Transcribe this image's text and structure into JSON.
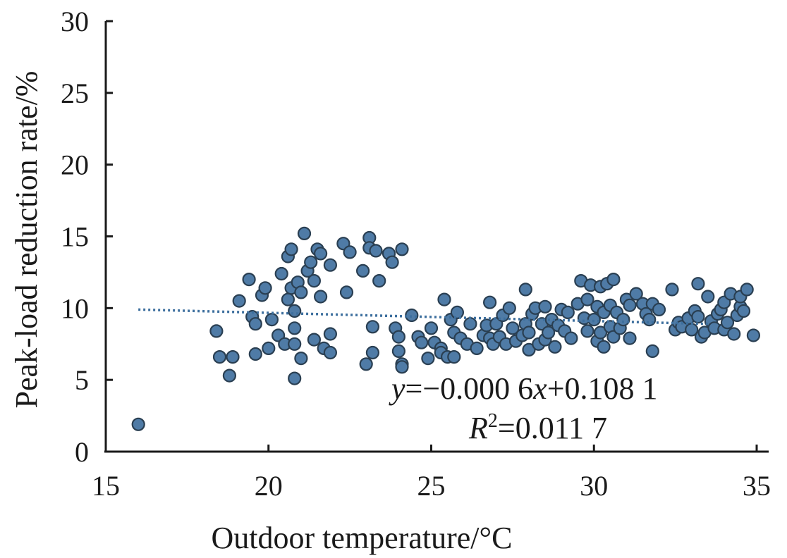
{
  "chart_data": {
    "type": "scatter",
    "xlabel": "Outdoor temperature/°C",
    "ylabel": "Peak-load reduction rate/%",
    "xlim": [
      15,
      35
    ],
    "ylim": [
      0,
      30
    ],
    "xticks": [
      "15",
      "20",
      "25",
      "30",
      "35"
    ],
    "yticks": [
      "0",
      "5",
      "10",
      "15",
      "20",
      "25",
      "30"
    ],
    "trendline": {
      "style": "dotted",
      "x": [
        16,
        33.5
      ],
      "y": [
        9.9,
        8.9
      ]
    },
    "annotation": {
      "equation": {
        "y": "y",
        "eq1": "=−0.000 6",
        "x": "x",
        "eq2": "+0.108 1"
      },
      "r2": {
        "r": "R",
        "sup": "2",
        "val": "=0.011 7"
      }
    },
    "grid": false,
    "points": [
      [
        16.0,
        1.9
      ],
      [
        18.4,
        8.4
      ],
      [
        18.5,
        6.6
      ],
      [
        18.8,
        5.3
      ],
      [
        18.9,
        6.6
      ],
      [
        19.1,
        10.5
      ],
      [
        19.4,
        12.0
      ],
      [
        19.5,
        9.4
      ],
      [
        19.6,
        8.9
      ],
      [
        19.6,
        6.8
      ],
      [
        19.8,
        10.9
      ],
      [
        19.9,
        11.4
      ],
      [
        20.0,
        7.2
      ],
      [
        20.1,
        9.2
      ],
      [
        20.3,
        8.1
      ],
      [
        20.4,
        12.4
      ],
      [
        20.5,
        7.5
      ],
      [
        20.6,
        10.6
      ],
      [
        20.6,
        13.6
      ],
      [
        20.7,
        14.1
      ],
      [
        20.7,
        11.4
      ],
      [
        20.8,
        9.8
      ],
      [
        20.8,
        8.6
      ],
      [
        20.8,
        7.5
      ],
      [
        20.8,
        5.1
      ],
      [
        20.9,
        11.8
      ],
      [
        21.0,
        11.1
      ],
      [
        21.0,
        6.5
      ],
      [
        21.1,
        15.2
      ],
      [
        21.2,
        12.6
      ],
      [
        21.3,
        13.2
      ],
      [
        21.4,
        11.9
      ],
      [
        21.4,
        7.8
      ],
      [
        21.5,
        14.1
      ],
      [
        21.6,
        13.8
      ],
      [
        21.6,
        10.8
      ],
      [
        21.7,
        7.2
      ],
      [
        21.9,
        13.0
      ],
      [
        21.9,
        8.2
      ],
      [
        21.9,
        6.9
      ],
      [
        22.3,
        14.5
      ],
      [
        22.4,
        11.1
      ],
      [
        22.5,
        13.9
      ],
      [
        22.9,
        12.6
      ],
      [
        23.0,
        6.1
      ],
      [
        23.1,
        14.9
      ],
      [
        23.1,
        14.2
      ],
      [
        23.2,
        8.7
      ],
      [
        23.2,
        6.9
      ],
      [
        23.3,
        14.0
      ],
      [
        23.4,
        11.9
      ],
      [
        23.7,
        13.8
      ],
      [
        23.8,
        13.2
      ],
      [
        23.9,
        8.6
      ],
      [
        24.0,
        8.0
      ],
      [
        24.0,
        7.0
      ],
      [
        24.1,
        6.1
      ],
      [
        24.1,
        5.9
      ],
      [
        24.1,
        14.1
      ],
      [
        24.4,
        9.5
      ],
      [
        24.6,
        8.0
      ],
      [
        24.7,
        7.6
      ],
      [
        24.9,
        6.5
      ],
      [
        25.0,
        8.6
      ],
      [
        25.1,
        7.6
      ],
      [
        25.3,
        7.2
      ],
      [
        25.3,
        6.9
      ],
      [
        25.4,
        10.6
      ],
      [
        25.5,
        6.6
      ],
      [
        25.6,
        9.2
      ],
      [
        25.7,
        8.3
      ],
      [
        25.7,
        6.6
      ],
      [
        25.8,
        9.7
      ],
      [
        25.9,
        7.9
      ],
      [
        26.1,
        7.5
      ],
      [
        26.2,
        8.9
      ],
      [
        26.4,
        7.2
      ],
      [
        26.6,
        8.1
      ],
      [
        26.7,
        8.8
      ],
      [
        26.8,
        10.4
      ],
      [
        26.8,
        7.9
      ],
      [
        26.9,
        7.5
      ],
      [
        27.0,
        8.9
      ],
      [
        27.1,
        8.0
      ],
      [
        27.2,
        9.5
      ],
      [
        27.3,
        7.5
      ],
      [
        27.4,
        10.0
      ],
      [
        27.5,
        8.6
      ],
      [
        27.6,
        7.7
      ],
      [
        27.8,
        8.1
      ],
      [
        27.9,
        11.3
      ],
      [
        27.9,
        8.9
      ],
      [
        28.0,
        7.1
      ],
      [
        28.0,
        8.3
      ],
      [
        28.1,
        9.6
      ],
      [
        28.2,
        10.0
      ],
      [
        28.3,
        7.5
      ],
      [
        28.4,
        8.9
      ],
      [
        28.5,
        10.1
      ],
      [
        28.5,
        7.8
      ],
      [
        28.6,
        8.3
      ],
      [
        28.7,
        9.2
      ],
      [
        28.8,
        7.3
      ],
      [
        28.9,
        8.8
      ],
      [
        29.0,
        9.9
      ],
      [
        29.1,
        8.4
      ],
      [
        29.2,
        9.7
      ],
      [
        29.3,
        7.9
      ],
      [
        29.5,
        10.3
      ],
      [
        29.6,
        11.9
      ],
      [
        29.7,
        9.3
      ],
      [
        29.8,
        8.4
      ],
      [
        29.8,
        10.6
      ],
      [
        29.9,
        11.6
      ],
      [
        30.0,
        9.2
      ],
      [
        30.1,
        7.7
      ],
      [
        30.1,
        10.1
      ],
      [
        30.2,
        11.5
      ],
      [
        30.2,
        8.3
      ],
      [
        30.3,
        9.7
      ],
      [
        30.3,
        7.3
      ],
      [
        30.4,
        11.7
      ],
      [
        30.5,
        8.7
      ],
      [
        30.5,
        10.2
      ],
      [
        30.6,
        12.0
      ],
      [
        30.6,
        8.0
      ],
      [
        30.7,
        9.7
      ],
      [
        30.8,
        8.6
      ],
      [
        30.9,
        9.2
      ],
      [
        31.0,
        10.6
      ],
      [
        31.1,
        10.2
      ],
      [
        31.1,
        7.9
      ],
      [
        31.3,
        11.0
      ],
      [
        31.5,
        10.3
      ],
      [
        31.6,
        9.6
      ],
      [
        31.7,
        9.2
      ],
      [
        31.8,
        7.0
      ],
      [
        31.8,
        10.3
      ],
      [
        32.0,
        9.9
      ],
      [
        32.4,
        11.3
      ],
      [
        32.5,
        8.5
      ],
      [
        32.6,
        9.0
      ],
      [
        32.7,
        8.7
      ],
      [
        32.9,
        9.3
      ],
      [
        33.0,
        8.5
      ],
      [
        33.1,
        9.8
      ],
      [
        33.2,
        9.4
      ],
      [
        33.2,
        11.7
      ],
      [
        33.3,
        8.0
      ],
      [
        33.4,
        8.3
      ],
      [
        33.5,
        10.8
      ],
      [
        33.6,
        9.1
      ],
      [
        33.7,
        8.6
      ],
      [
        33.8,
        9.6
      ],
      [
        33.9,
        9.9
      ],
      [
        34.0,
        8.5
      ],
      [
        34.0,
        10.4
      ],
      [
        34.1,
        9.0
      ],
      [
        34.2,
        11.0
      ],
      [
        34.3,
        8.2
      ],
      [
        34.4,
        9.5
      ],
      [
        34.5,
        10.1
      ],
      [
        34.5,
        10.8
      ],
      [
        34.6,
        9.8
      ],
      [
        34.7,
        11.3
      ],
      [
        34.9,
        8.1
      ]
    ]
  }
}
